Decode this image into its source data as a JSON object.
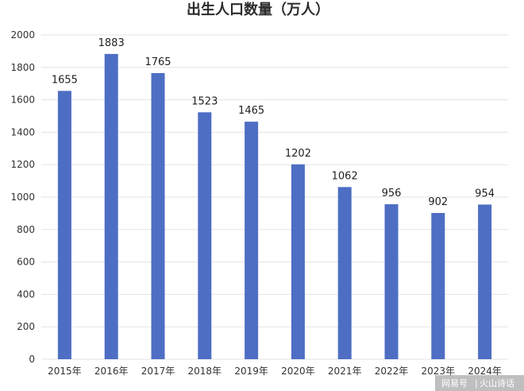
{
  "chart_data": {
    "type": "bar",
    "title": "出生人口数量（万人）",
    "categories": [
      "2015年",
      "2016年",
      "2017年",
      "2018年",
      "2019年",
      "2020年",
      "2021年",
      "2022年",
      "2023年",
      "2024年"
    ],
    "values": [
      1655,
      1883,
      1765,
      1523,
      1465,
      1202,
      1062,
      956,
      902,
      954
    ],
    "ylim": [
      0,
      2000
    ],
    "yticks": [
      0,
      200,
      400,
      600,
      800,
      1000,
      1200,
      1400,
      1600,
      1800,
      2000
    ],
    "grid": true,
    "legend": "none",
    "bar_color": "#4e6ec4",
    "grid_color": "#e3e3e3"
  },
  "watermark": {
    "source": "网易号",
    "author": "火山诗话"
  }
}
